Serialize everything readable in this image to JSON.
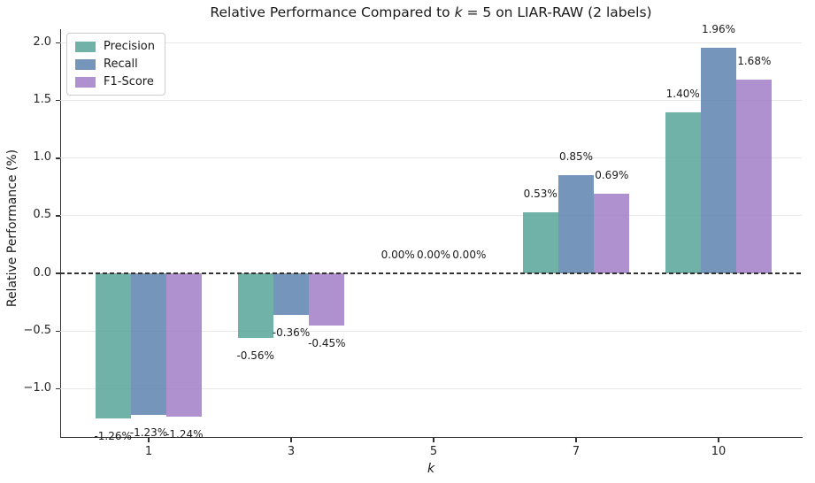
{
  "title": {
    "prefix": "Relative Performance Compared to ",
    "k_symbol": "k",
    "equals": " = 5",
    "suffix": " on LIAR-RAW (2 labels)"
  },
  "chart_data": {
    "type": "bar",
    "title": "Relative Performance Compared to k = 5 on LIAR-RAW (2 labels)",
    "xlabel": "k",
    "ylabel": "Relative Performance (%)",
    "categories": [
      "1",
      "3",
      "5",
      "7",
      "10"
    ],
    "series": [
      {
        "name": "Precision",
        "color": "#57a399",
        "alpha": 0.85,
        "values": [
          -1.26,
          -0.56,
          0.0,
          0.53,
          1.4
        ],
        "labels": [
          "-1.26%",
          "-0.56%",
          "0.00%",
          "0.53%",
          "1.40%"
        ]
      },
      {
        "name": "Recall",
        "color": "#5d82ae",
        "alpha": 0.85,
        "values": [
          -1.23,
          -0.36,
          0.0,
          0.85,
          1.96
        ],
        "labels": [
          "-1.23%",
          "-0.36%",
          "0.00%",
          "0.85%",
          "1.96%"
        ]
      },
      {
        "name": "F1-Score",
        "color": "#a17ec8",
        "alpha": 0.85,
        "values": [
          -1.24,
          -0.45,
          0.0,
          0.69,
          1.68
        ],
        "labels": [
          "-1.24%",
          "-0.45%",
          "0.00%",
          "0.69%",
          "1.68%"
        ]
      }
    ],
    "ylim": [
      -1.42,
      2.12
    ],
    "yticks": [
      2.0,
      1.5,
      1.0,
      0.5,
      0.0,
      -0.5,
      -1.0
    ],
    "ytick_labels": [
      "2.0",
      "1.5",
      "1.0",
      "0.5",
      "0.0",
      "−0.5",
      "−1.0"
    ],
    "grid": true,
    "grid_color": "#e7e7e7",
    "zero_line_style": "dashed",
    "zero_line_color": "#333333",
    "legend_position": "upper left",
    "background": "#ffffff"
  }
}
